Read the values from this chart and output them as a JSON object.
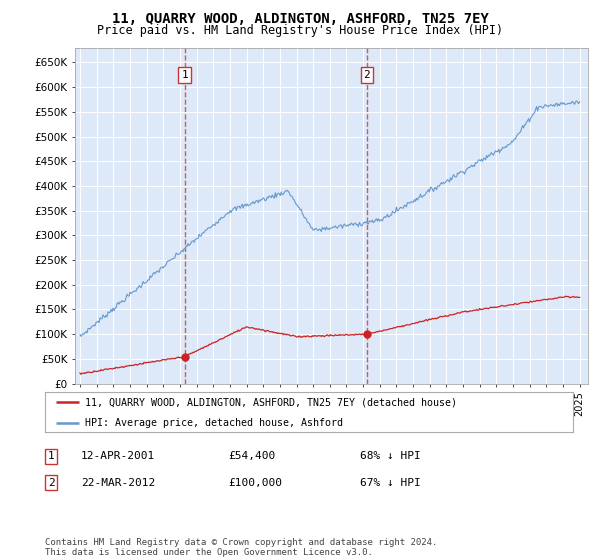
{
  "title": "11, QUARRY WOOD, ALDINGTON, ASHFORD, TN25 7EY",
  "subtitle": "Price paid vs. HM Land Registry's House Price Index (HPI)",
  "ylim": [
    0,
    680000
  ],
  "xlim_start": 1994.7,
  "xlim_end": 2025.5,
  "bg_color": "#dde8f8",
  "grid_color": "#ffffff",
  "hpi_color": "#6699cc",
  "price_color": "#cc2222",
  "sale1_x": 2001.28,
  "sale1_y": 54400,
  "sale2_x": 2012.22,
  "sale2_y": 100000,
  "sale1_date": "12-APR-2001",
  "sale1_price": "£54,400",
  "sale1_info": "68% ↓ HPI",
  "sale2_date": "22-MAR-2012",
  "sale2_price": "£100,000",
  "sale2_info": "67% ↓ HPI",
  "legend_line1": "11, QUARRY WOOD, ALDINGTON, ASHFORD, TN25 7EY (detached house)",
  "legend_line2": "HPI: Average price, detached house, Ashford",
  "footer": "Contains HM Land Registry data © Crown copyright and database right 2024.\nThis data is licensed under the Open Government Licence v3.0.",
  "y_tick_vals": [
    0,
    50000,
    100000,
    150000,
    200000,
    250000,
    300000,
    350000,
    400000,
    450000,
    500000,
    550000,
    600000,
    650000
  ],
  "y_tick_labels": [
    "£0",
    "£50K",
    "£100K",
    "£150K",
    "£200K",
    "£250K",
    "£300K",
    "£350K",
    "£400K",
    "£450K",
    "£500K",
    "£550K",
    "£600K",
    "£650K"
  ]
}
